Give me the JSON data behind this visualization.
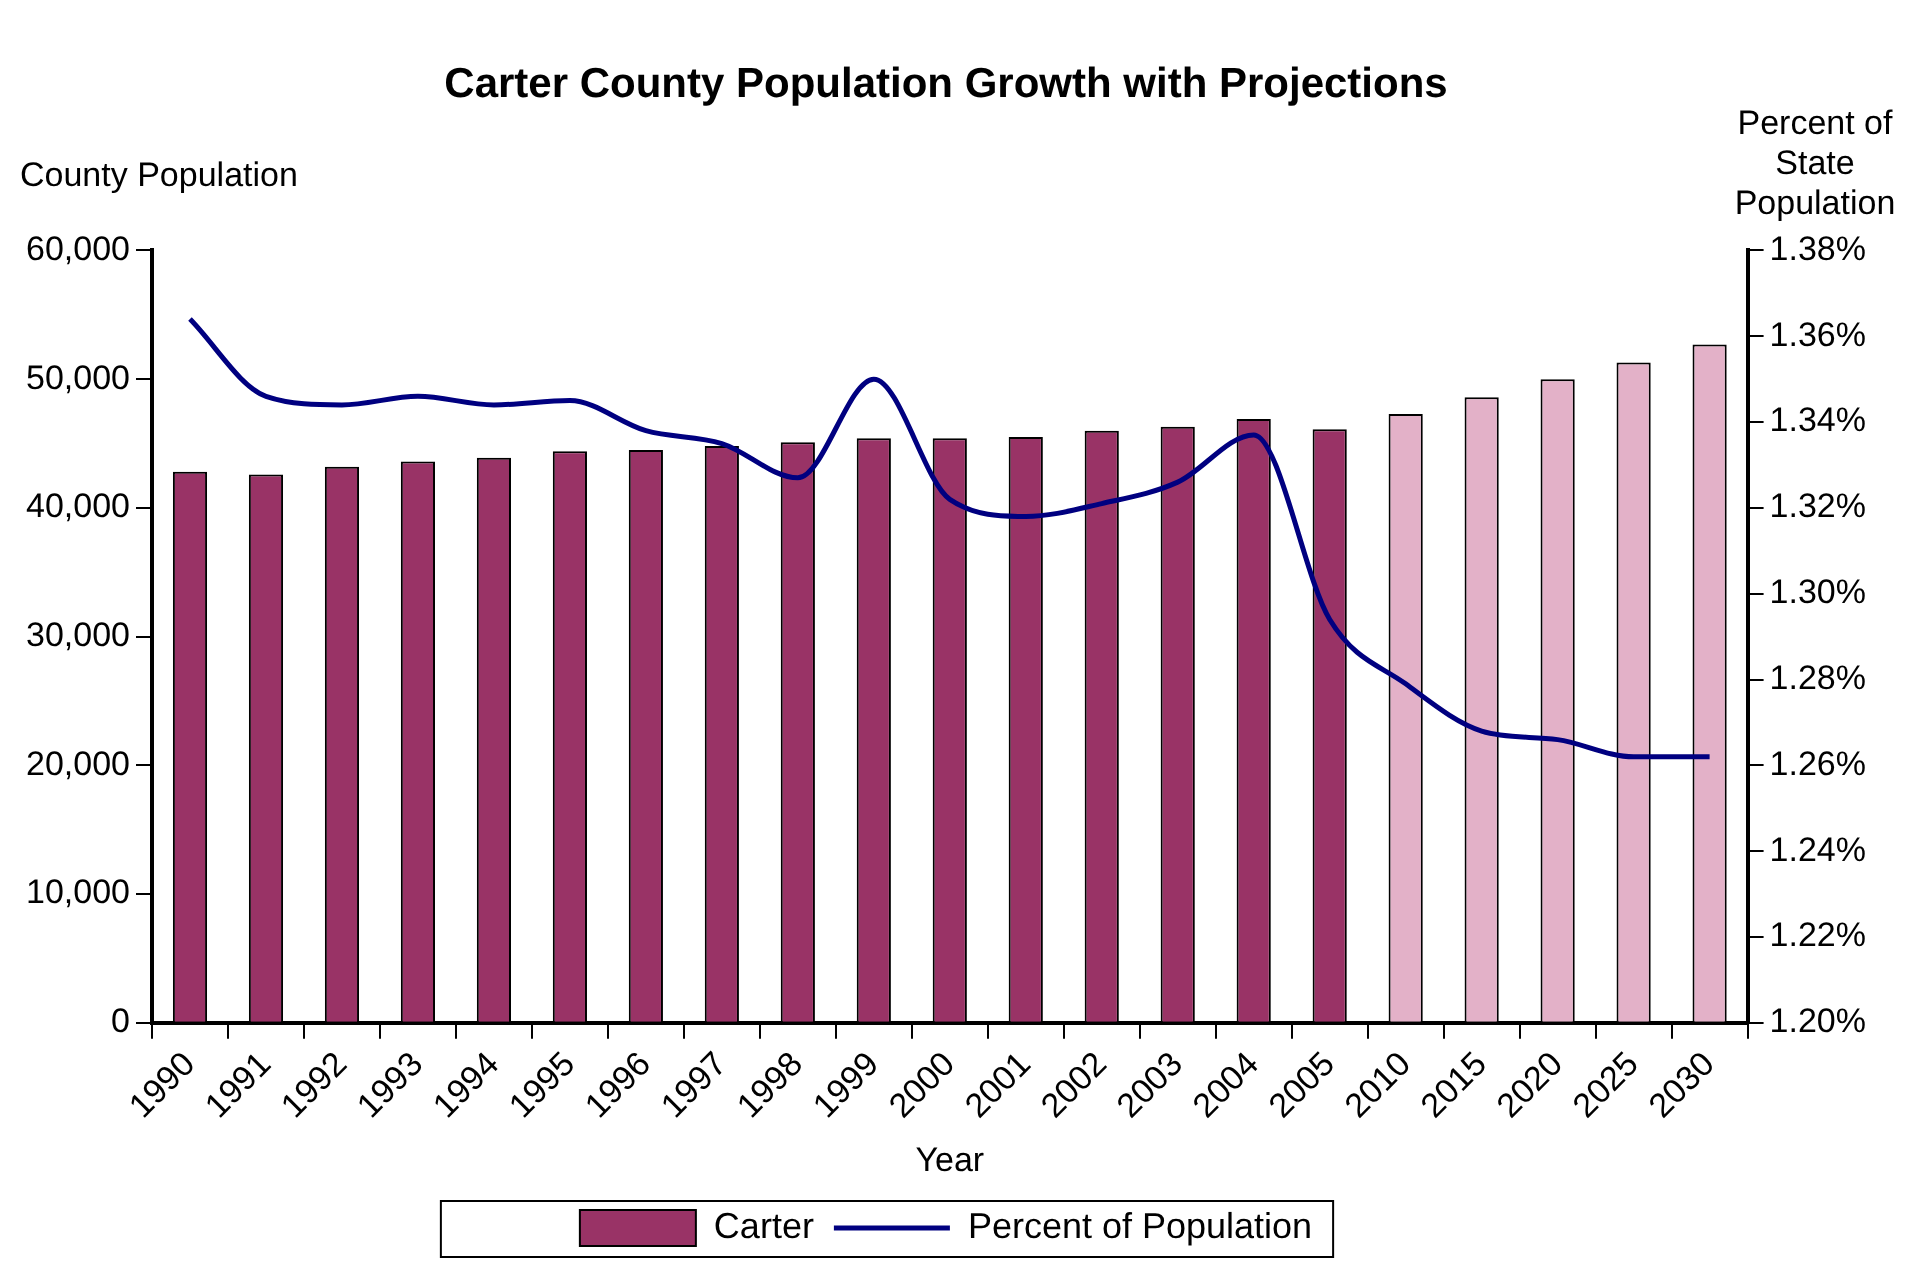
{
  "chart_data": {
    "type": "bar",
    "title": "Carter County Population Growth with Projections",
    "xlabel": "Year",
    "ylabel": "County Population",
    "y2label": "Percent of State Population",
    "categories": [
      "1990",
      "1991",
      "1992",
      "1993",
      "1994",
      "1995",
      "1996",
      "1997",
      "1998",
      "1999",
      "2000",
      "2001",
      "2002",
      "2003",
      "2004",
      "2005",
      "2010",
      "2015",
      "2020",
      "2025",
      "2030"
    ],
    "series": [
      {
        "name": "Carter",
        "color": "#993366",
        "colors": [
          "#993366",
          "#993366",
          "#993366",
          "#993366",
          "#993366",
          "#993366",
          "#993366",
          "#993366",
          "#993366",
          "#993366",
          "#993366",
          "#993366",
          "#993366",
          "#993366",
          "#993366",
          "#993366",
          "#e3b1c8",
          "#e3b1c8",
          "#e3b1c8",
          "#e3b1c8",
          "#e3b1c8"
        ],
        "values": [
          42800,
          42600,
          43200,
          43600,
          43900,
          44400,
          44500,
          44800,
          45100,
          45400,
          45400,
          45500,
          46000,
          46300,
          46900,
          46100,
          47300,
          48600,
          50000,
          51300,
          52700
        ]
      },
      {
        "name": "Percent of Population",
        "type": "line",
        "axis": "y2",
        "color": "#000080",
        "values": [
          1.364,
          1.346,
          1.344,
          1.346,
          1.344,
          1.345,
          1.338,
          1.335,
          1.327,
          1.35,
          1.322,
          1.318,
          1.321,
          1.326,
          1.337,
          1.294,
          1.279,
          1.268,
          1.266,
          1.262,
          1.262
        ]
      }
    ],
    "ylim": [
      0,
      60000
    ],
    "yticks": [
      0,
      {
        "value": 10000,
        "label": "10,000"
      },
      {
        "value": 20000,
        "label": "20,000"
      },
      {
        "value": 30000,
        "label": "30,000"
      },
      {
        "value": 40000,
        "label": "40,000"
      },
      {
        "value": 50000,
        "label": "50,000"
      },
      {
        "value": 60000,
        "label": "60,000"
      }
    ],
    "y2lim": [
      1.2,
      1.38
    ],
    "y2ticks": [
      {
        "value": 1.2,
        "label": "1.20%"
      },
      {
        "value": 1.22,
        "label": "1.22%"
      },
      {
        "value": 1.24,
        "label": "1.24%"
      },
      {
        "value": 1.26,
        "label": "1.26%"
      },
      {
        "value": 1.28,
        "label": "1.28%"
      },
      {
        "value": 1.3,
        "label": "1.30%"
      },
      {
        "value": 1.32,
        "label": "1.32%"
      },
      {
        "value": 1.34,
        "label": "1.34%"
      },
      {
        "value": 1.36,
        "label": "1.36%"
      },
      {
        "value": 1.38,
        "label": "1.38%"
      }
    ],
    "grid": false,
    "legend": "bottom",
    "marker": "none"
  }
}
